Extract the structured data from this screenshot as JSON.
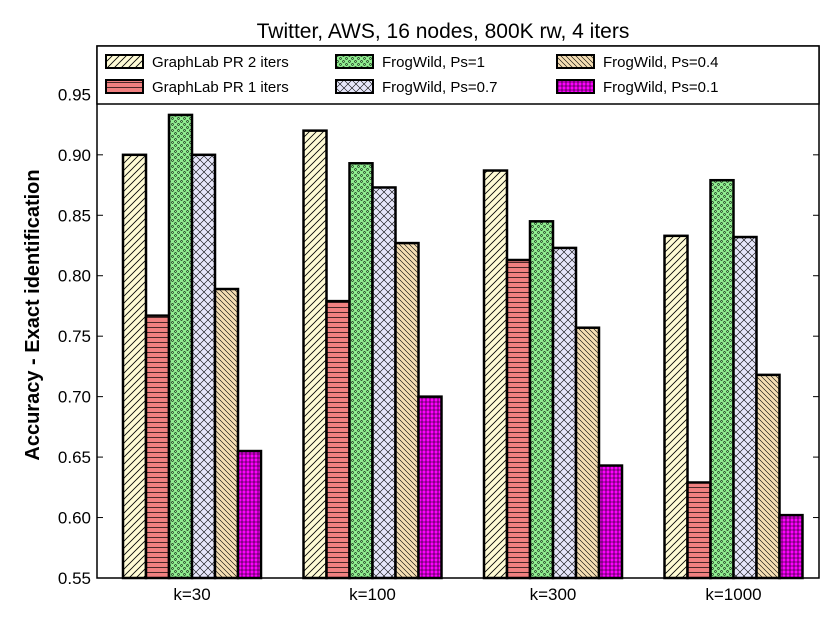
{
  "chart_data": {
    "type": "bar",
    "title": "Twitter, AWS, 16 nodes, 800K rw, 4 iters",
    "xlabel": "",
    "ylabel": "Accuracy - Exact identification",
    "ylim": [
      0.55,
      0.99
    ],
    "yticks": [
      "0.55",
      "0.60",
      "0.65",
      "0.70",
      "0.75",
      "0.80",
      "0.85",
      "0.90",
      "0.95"
    ],
    "categories": [
      "k=30",
      "k=100",
      "k=300",
      "k=1000"
    ],
    "legend_location": "top",
    "series": [
      {
        "name": "GraphLab PR 2 iters",
        "values": [
          0.9,
          0.92,
          0.887,
          0.833
        ],
        "color": "#fffbd5",
        "pattern": "hatch-diag-fwd"
      },
      {
        "name": "GraphLab PR 1 iters",
        "values": [
          0.767,
          0.779,
          0.813,
          0.629
        ],
        "color": "#f08080",
        "pattern": "hatch-horizontal"
      },
      {
        "name": "FrogWild, Ps=1",
        "values": [
          0.933,
          0.893,
          0.845,
          0.879
        ],
        "color": "#90ee90",
        "pattern": "dots"
      },
      {
        "name": "FrogWild, Ps=0.7",
        "values": [
          0.9,
          0.873,
          0.823,
          0.832
        ],
        "color": "#e6e6fa",
        "pattern": "crosshatch"
      },
      {
        "name": "FrogWild, Ps=0.4",
        "values": [
          0.789,
          0.827,
          0.757,
          0.718
        ],
        "color": "#f5deb3",
        "pattern": "hatch-diag-back"
      },
      {
        "name": "FrogWild, Ps=0.1",
        "values": [
          0.655,
          0.7,
          0.643,
          0.602
        ],
        "color": "#ff00ff",
        "pattern": "grid"
      }
    ]
  }
}
